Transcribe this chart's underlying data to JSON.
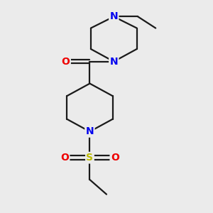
{
  "background_color": "#ebebeb",
  "bond_color": "#1a1a1a",
  "N_color": "#0000ee",
  "O_color": "#ee0000",
  "S_color": "#bbbb00",
  "figsize": [
    3.0,
    3.0
  ],
  "dpi": 100,
  "xlim": [
    0,
    10
  ],
  "ylim": [
    0,
    10
  ],
  "lw": 1.6,
  "fs": 10
}
